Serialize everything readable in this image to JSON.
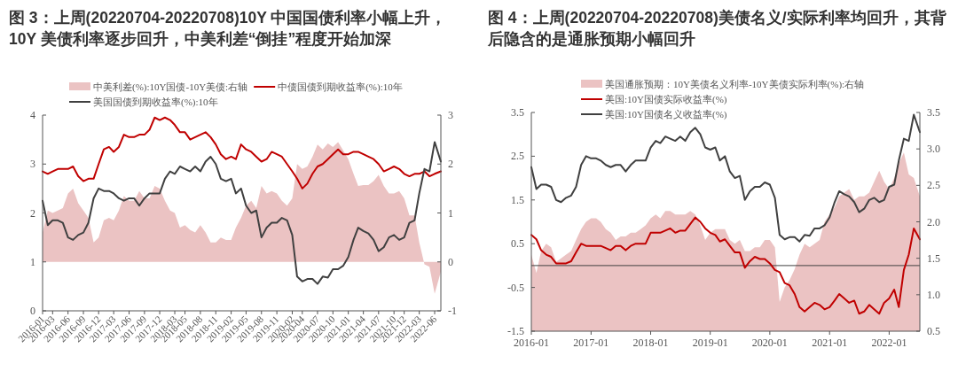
{
  "chart_data": [
    {
      "type": "line",
      "title": "图 3：上周(20220704-20220708)10Y 中国国债利率小幅上升，10Y 美债利率逐步回升，中美利差“倒挂”程度开始加深",
      "x": [
        "2016-01",
        "2016-02",
        "2016-03",
        "2016-04",
        "2016-05",
        "2016-06",
        "2016-07",
        "2016-08",
        "2016-09",
        "2016-10",
        "2016-11",
        "2016-12",
        "2017-01",
        "2017-02",
        "2017-03",
        "2017-04",
        "2017-05",
        "2017-06",
        "2017-07",
        "2017-08",
        "2017-09",
        "2017-10",
        "2017-11",
        "2017-12",
        "2018-01",
        "2018-02",
        "2018-03",
        "2018-04",
        "2018-05",
        "2018-06",
        "2018-07",
        "2018-08",
        "2018-09",
        "2018-10",
        "2018-11",
        "2018-12",
        "2019-01",
        "2019-02",
        "2019-03",
        "2019-04",
        "2019-05",
        "2019-06",
        "2019-07",
        "2019-08",
        "2019-09",
        "2019-10",
        "2019-11",
        "2019-12",
        "2020-01",
        "2020-02",
        "2020-03",
        "2020-04",
        "2020-05",
        "2020-06",
        "2020-07",
        "2020-08",
        "2020-09",
        "2020-10",
        "2020-11",
        "2020-12",
        "2021-01",
        "2021-02",
        "2021-03",
        "2021-04",
        "2021-05",
        "2021-06",
        "2021-07",
        "2021-08",
        "2021-09",
        "2021-10",
        "2021-11",
        "2021-12",
        "2022-01",
        "2022-02",
        "2022-03",
        "2022-04",
        "2022-05",
        "2022-06",
        "2022-07-08"
      ],
      "series": [
        {
          "name": "中美利差(%):10Y国债-10Y美债:右轴",
          "type": "area",
          "axis": "y2",
          "color": "#ebc3c3",
          "values": [
            0.6,
            1.05,
            1.0,
            1.05,
            1.1,
            1.4,
            1.5,
            1.2,
            1.05,
            0.9,
            0.4,
            0.5,
            0.85,
            0.9,
            0.85,
            1.05,
            1.35,
            1.25,
            1.25,
            1.45,
            1.3,
            1.3,
            1.55,
            1.5,
            1.25,
            1.05,
            1.0,
            0.7,
            0.75,
            0.65,
            0.6,
            0.75,
            0.6,
            0.4,
            0.4,
            0.5,
            0.45,
            0.45,
            0.7,
            0.9,
            1.15,
            1.25,
            1.1,
            1.55,
            1.4,
            1.45,
            1.4,
            1.25,
            1.15,
            1.3,
            2.0,
            1.9,
            1.95,
            2.15,
            2.4,
            2.3,
            2.42,
            2.35,
            2.45,
            2.28,
            2.1,
            1.8,
            1.55,
            1.57,
            1.57,
            1.65,
            1.78,
            1.55,
            1.4,
            1.4,
            1.45,
            1.3,
            0.95,
            0.95,
            0.4,
            -0.05,
            -0.1,
            -0.65,
            -0.2
          ]
        },
        {
          "name": "中债国债到期收益率(%):10年",
          "type": "line",
          "color": "#c00000",
          "values": [
            2.85,
            2.8,
            2.85,
            2.9,
            2.9,
            2.9,
            2.95,
            2.75,
            2.65,
            2.7,
            2.7,
            3.0,
            3.3,
            3.35,
            3.25,
            3.35,
            3.6,
            3.55,
            3.55,
            3.6,
            3.6,
            3.7,
            3.95,
            3.9,
            3.95,
            3.9,
            3.8,
            3.65,
            3.65,
            3.5,
            3.55,
            3.6,
            3.65,
            3.55,
            3.4,
            3.2,
            3.1,
            3.15,
            3.1,
            3.4,
            3.3,
            3.25,
            3.15,
            3.05,
            3.1,
            3.25,
            3.2,
            3.15,
            3.0,
            2.85,
            2.7,
            2.5,
            2.6,
            2.8,
            2.95,
            3.0,
            3.1,
            3.2,
            3.3,
            3.2,
            3.2,
            3.25,
            3.25,
            3.2,
            3.15,
            3.1,
            3.0,
            2.85,
            2.9,
            2.95,
            2.9,
            2.8,
            2.75,
            2.8,
            2.8,
            2.85,
            2.75,
            2.8,
            2.85
          ]
        },
        {
          "name": "美国国债到期收益率(%):10年",
          "type": "line",
          "color": "#404040",
          "values": [
            2.25,
            1.75,
            1.85,
            1.85,
            1.8,
            1.5,
            1.45,
            1.55,
            1.6,
            1.8,
            2.3,
            2.5,
            2.45,
            2.45,
            2.4,
            2.3,
            2.25,
            2.3,
            2.3,
            2.15,
            2.3,
            2.4,
            2.4,
            2.4,
            2.7,
            2.85,
            2.8,
            2.95,
            2.9,
            2.85,
            2.95,
            2.85,
            3.05,
            3.15,
            3.0,
            2.7,
            2.65,
            2.7,
            2.4,
            2.5,
            2.15,
            2.0,
            2.05,
            1.5,
            1.7,
            1.8,
            1.8,
            1.9,
            1.85,
            1.55,
            0.7,
            0.6,
            0.65,
            0.65,
            0.55,
            0.7,
            0.68,
            0.85,
            0.85,
            0.92,
            1.1,
            1.45,
            1.7,
            1.63,
            1.58,
            1.45,
            1.22,
            1.3,
            1.5,
            1.55,
            1.45,
            1.5,
            1.8,
            1.85,
            2.4,
            2.9,
            2.85,
            3.45,
            3.05
          ]
        }
      ],
      "xlim": [
        "2016-01",
        "2022-07-08"
      ],
      "xticks": [
        "2016-01",
        "2016-03",
        "2016-06",
        "2016-09",
        "2016-12",
        "2017-03",
        "2017-06",
        "2017-09",
        "2017-12",
        "2018-03",
        "2018-05",
        "2018-08",
        "2018-11",
        "2019-02",
        "2019-05",
        "2019-08",
        "2019-11",
        "2020-02",
        "2020-04",
        "2020-07",
        "2020-10",
        "2021-01",
        "2021-04",
        "2021-07",
        "2021-10",
        "2021-12",
        "2022-03",
        "2022-06"
      ],
      "ylim": [
        0,
        4
      ],
      "yticks": [
        0,
        1,
        2,
        3,
        4
      ],
      "y2lim": [
        -1,
        3
      ],
      "y2ticks": [
        -1,
        0,
        1,
        2,
        3
      ],
      "legend": "top",
      "grid": false
    },
    {
      "type": "line",
      "title": "图 4：上周(20220704-20220708)美债名义/实际利率均回升，其背后隐含的是通胀预期小幅回升",
      "x": [
        "2016-01",
        "2016-02",
        "2016-03",
        "2016-04",
        "2016-05",
        "2016-06",
        "2016-07",
        "2016-08",
        "2016-09",
        "2016-10",
        "2016-11",
        "2016-12",
        "2017-01",
        "2017-02",
        "2017-03",
        "2017-04",
        "2017-05",
        "2017-06",
        "2017-07",
        "2017-08",
        "2017-09",
        "2017-10",
        "2017-11",
        "2017-12",
        "2018-01",
        "2018-02",
        "2018-03",
        "2018-04",
        "2018-05",
        "2018-06",
        "2018-07",
        "2018-08",
        "2018-09",
        "2018-10",
        "2018-11",
        "2018-12",
        "2019-01",
        "2019-02",
        "2019-03",
        "2019-04",
        "2019-05",
        "2019-06",
        "2019-07",
        "2019-08",
        "2019-09",
        "2019-10",
        "2019-11",
        "2019-12",
        "2020-01",
        "2020-02",
        "2020-03",
        "2020-04",
        "2020-05",
        "2020-06",
        "2020-07",
        "2020-08",
        "2020-09",
        "2020-10",
        "2020-11",
        "2020-12",
        "2021-01",
        "2021-02",
        "2021-03",
        "2021-04",
        "2021-05",
        "2021-06",
        "2021-07",
        "2021-08",
        "2021-09",
        "2021-10",
        "2021-11",
        "2021-12",
        "2022-01",
        "2022-02",
        "2022-03",
        "2022-04",
        "2022-05",
        "2022-06",
        "2022-07-08"
      ],
      "series": [
        {
          "name": "美国通胀预期：10Y美债名义利率-10Y美债实际利率(%):右轴",
          "type": "area",
          "axis": "y2",
          "color": "#ebc3c3",
          "values": [
            1.55,
            1.3,
            1.6,
            1.7,
            1.65,
            1.45,
            1.5,
            1.55,
            1.6,
            1.75,
            1.9,
            2.0,
            2.05,
            2.05,
            2.0,
            1.9,
            1.85,
            1.75,
            1.8,
            1.8,
            1.85,
            1.85,
            1.9,
            1.95,
            2.05,
            2.1,
            2.05,
            2.15,
            2.15,
            2.1,
            2.1,
            2.1,
            2.15,
            2.1,
            1.95,
            1.75,
            1.85,
            1.9,
            1.9,
            1.9,
            1.75,
            1.7,
            1.75,
            1.6,
            1.6,
            1.65,
            1.65,
            1.75,
            1.75,
            1.65,
            0.9,
            1.1,
            1.2,
            1.35,
            1.55,
            1.7,
            1.65,
            1.7,
            1.75,
            2.0,
            2.1,
            2.2,
            2.35,
            2.4,
            2.45,
            2.3,
            2.35,
            2.35,
            2.4,
            2.55,
            2.7,
            2.55,
            2.45,
            2.6,
            2.8,
            2.95,
            2.65,
            2.6,
            2.35
          ]
        },
        {
          "name": "美国:10Y国债实际收益率(%)",
          "type": "line",
          "color": "#c00000",
          "values": [
            0.7,
            0.6,
            0.35,
            0.25,
            0.2,
            0.05,
            0.05,
            0.05,
            0.1,
            0.3,
            0.5,
            0.45,
            0.45,
            0.45,
            0.45,
            0.4,
            0.35,
            0.45,
            0.45,
            0.35,
            0.45,
            0.5,
            0.5,
            0.5,
            0.75,
            0.75,
            0.75,
            0.8,
            0.85,
            0.75,
            0.8,
            0.8,
            0.95,
            1.1,
            1.0,
            0.85,
            0.75,
            0.7,
            0.55,
            0.6,
            0.45,
            0.3,
            0.3,
            -0.05,
            0.1,
            0.2,
            0.15,
            0.15,
            0.05,
            -0.1,
            -0.15,
            -0.4,
            -0.45,
            -0.65,
            -0.95,
            -1.05,
            -0.95,
            -0.85,
            -0.9,
            -1.0,
            -0.95,
            -0.8,
            -0.65,
            -0.75,
            -0.85,
            -0.8,
            -1.1,
            -1.05,
            -0.9,
            -1.0,
            -1.1,
            -0.85,
            -0.75,
            -0.55,
            -0.95,
            -0.1,
            0.25,
            0.85,
            0.6
          ]
        },
        {
          "name": "美国:10Y国债名义收益率(%)",
          "type": "line",
          "color": "#404040",
          "values": [
            2.25,
            1.75,
            1.85,
            1.85,
            1.8,
            1.5,
            1.45,
            1.55,
            1.6,
            1.8,
            2.3,
            2.5,
            2.45,
            2.45,
            2.4,
            2.3,
            2.25,
            2.3,
            2.3,
            2.15,
            2.3,
            2.4,
            2.4,
            2.4,
            2.7,
            2.85,
            2.8,
            2.95,
            2.9,
            2.85,
            2.95,
            2.85,
            3.05,
            3.15,
            3.0,
            2.7,
            2.65,
            2.7,
            2.4,
            2.5,
            2.15,
            2.0,
            2.05,
            1.5,
            1.7,
            1.8,
            1.8,
            1.9,
            1.85,
            1.55,
            0.7,
            0.6,
            0.65,
            0.65,
            0.55,
            0.7,
            0.68,
            0.85,
            0.85,
            0.92,
            1.1,
            1.45,
            1.7,
            1.63,
            1.58,
            1.45,
            1.22,
            1.3,
            1.5,
            1.55,
            1.45,
            1.5,
            1.8,
            1.85,
            2.4,
            2.9,
            2.85,
            3.45,
            3.05
          ]
        }
      ],
      "xlim": [
        "2016-01",
        "2022-07-08"
      ],
      "xticks": [
        "2016-01",
        "2017-01",
        "2018-01",
        "2019-01",
        "2020-01",
        "2021-01",
        "2022-01"
      ],
      "ylim": [
        -1.5,
        3.5
      ],
      "yticks": [
        -1.5,
        -0.5,
        0.5,
        1.5,
        2.5,
        3.5
      ],
      "y2lim": [
        0.5,
        3.5
      ],
      "y2ticks": [
        0.5,
        {
          "value": 1,
          "label": "1.0"
        },
        1.5,
        {
          "value": 2,
          "label": "2.0"
        },
        2.5,
        {
          "value": 3,
          "label": "3.0"
        },
        3.5
      ],
      "ref_lines": [
        {
          "axis": "y",
          "value": 0,
          "color": "#404040"
        }
      ],
      "legend": "top",
      "grid": false
    }
  ]
}
